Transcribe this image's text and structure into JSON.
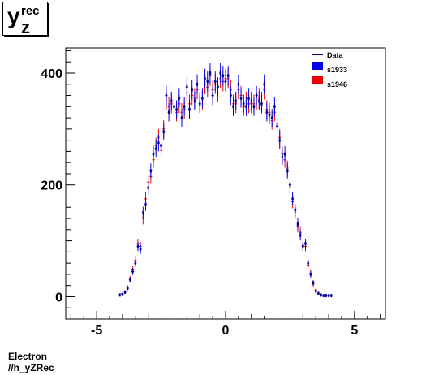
{
  "title": {
    "main": "y",
    "sup": "rec",
    "sub": "z"
  },
  "footer": {
    "line1": "Electron",
    "line2": "//h_yZRec"
  },
  "chart_data": {
    "type": "scatter",
    "title": "y_z^rec",
    "xlim": [
      -6.2,
      6.2
    ],
    "ylim": [
      -40,
      445
    ],
    "x_ticks": [
      -5,
      0,
      5
    ],
    "y_ticks": [
      0,
      200,
      400
    ],
    "x_tick_labels": [
      "-5",
      "0",
      "5"
    ],
    "y_tick_labels": [
      "0",
      "200",
      "400"
    ],
    "legend_position": "top-right",
    "series": [
      {
        "name": "Data",
        "style": "line",
        "color": "#00008b",
        "x": [],
        "y": []
      },
      {
        "name": "s1933",
        "style": "errorbar",
        "color": "#0000ee",
        "x": [
          -4.1,
          -4.0,
          -3.9,
          -3.8,
          -3.7,
          -3.6,
          -3.5,
          -3.4,
          -3.3,
          -3.2,
          -3.1,
          -3.0,
          -2.9,
          -2.8,
          -2.7,
          -2.6,
          -2.5,
          -2.4,
          -2.3,
          -2.2,
          -2.1,
          -2.0,
          -1.9,
          -1.8,
          -1.7,
          -1.6,
          -1.5,
          -1.4,
          -1.3,
          -1.2,
          -1.1,
          -1.0,
          -0.9,
          -0.8,
          -0.7,
          -0.6,
          -0.5,
          -0.4,
          -0.3,
          -0.2,
          -0.1,
          0.0,
          0.1,
          0.2,
          0.3,
          0.4,
          0.5,
          0.6,
          0.7,
          0.8,
          0.9,
          1.0,
          1.1,
          1.2,
          1.3,
          1.4,
          1.5,
          1.6,
          1.7,
          1.8,
          1.9,
          2.0,
          2.1,
          2.2,
          2.3,
          2.4,
          2.5,
          2.6,
          2.7,
          2.8,
          2.9,
          3.0,
          3.1,
          3.2,
          3.3,
          3.4,
          3.5,
          3.6,
          3.7,
          3.8,
          3.9,
          4.0,
          4.1
        ],
        "y": [
          3,
          4,
          8,
          15,
          30,
          45,
          60,
          90,
          85,
          150,
          165,
          195,
          225,
          255,
          265,
          275,
          270,
          295,
          360,
          330,
          350,
          340,
          335,
          355,
          320,
          340,
          375,
          335,
          370,
          350,
          380,
          345,
          355,
          390,
          385,
          400,
          360,
          385,
          375,
          400,
          395,
          385,
          395,
          360,
          340,
          350,
          380,
          355,
          345,
          340,
          355,
          350,
          340,
          360,
          350,
          345,
          380,
          330,
          325,
          320,
          340,
          305,
          280,
          250,
          255,
          225,
          200,
          175,
          155,
          130,
          110,
          90,
          95,
          60,
          40,
          25,
          10,
          6,
          3,
          2,
          2,
          2,
          2
        ]
      },
      {
        "name": "s1946",
        "style": "errorbar",
        "color": "#ee0000",
        "x": [
          -4.1,
          -4.0,
          -3.9,
          -3.8,
          -3.7,
          -3.6,
          -3.5,
          -3.4,
          -3.3,
          -3.2,
          -3.1,
          -3.0,
          -2.9,
          -2.8,
          -2.7,
          -2.6,
          -2.5,
          -2.4,
          -2.3,
          -2.2,
          -2.1,
          -2.0,
          -1.9,
          -1.8,
          -1.7,
          -1.6,
          -1.5,
          -1.4,
          -1.3,
          -1.2,
          -1.1,
          -1.0,
          -0.9,
          -0.8,
          -0.7,
          -0.6,
          -0.5,
          -0.4,
          -0.3,
          -0.2,
          -0.1,
          0.0,
          0.1,
          0.2,
          0.3,
          0.4,
          0.5,
          0.6,
          0.7,
          0.8,
          0.9,
          1.0,
          1.1,
          1.2,
          1.3,
          1.4,
          1.5,
          1.6,
          1.7,
          1.8,
          1.9,
          2.0,
          2.1,
          2.2,
          2.3,
          2.4,
          2.5,
          2.6,
          2.7,
          2.8,
          2.9,
          3.0,
          3.1,
          3.2,
          3.3,
          3.4,
          3.5,
          3.6,
          3.7,
          3.8,
          3.9,
          4.0,
          4.1
        ],
        "y": [
          3,
          5,
          9,
          17,
          32,
          48,
          65,
          95,
          90,
          140,
          175,
          205,
          215,
          245,
          270,
          285,
          262,
          300,
          350,
          340,
          345,
          350,
          330,
          345,
          330,
          335,
          365,
          345,
          360,
          355,
          370,
          350,
          350,
          380,
          375,
          395,
          370,
          380,
          365,
          390,
          385,
          390,
          390,
          370,
          345,
          345,
          370,
          360,
          340,
          350,
          345,
          345,
          345,
          350,
          355,
          350,
          370,
          335,
          330,
          315,
          330,
          310,
          285,
          255,
          245,
          230,
          195,
          170,
          150,
          125,
          115,
          92,
          90,
          55,
          42,
          22,
          12,
          5,
          2,
          2,
          2,
          2,
          2
        ]
      }
    ]
  }
}
